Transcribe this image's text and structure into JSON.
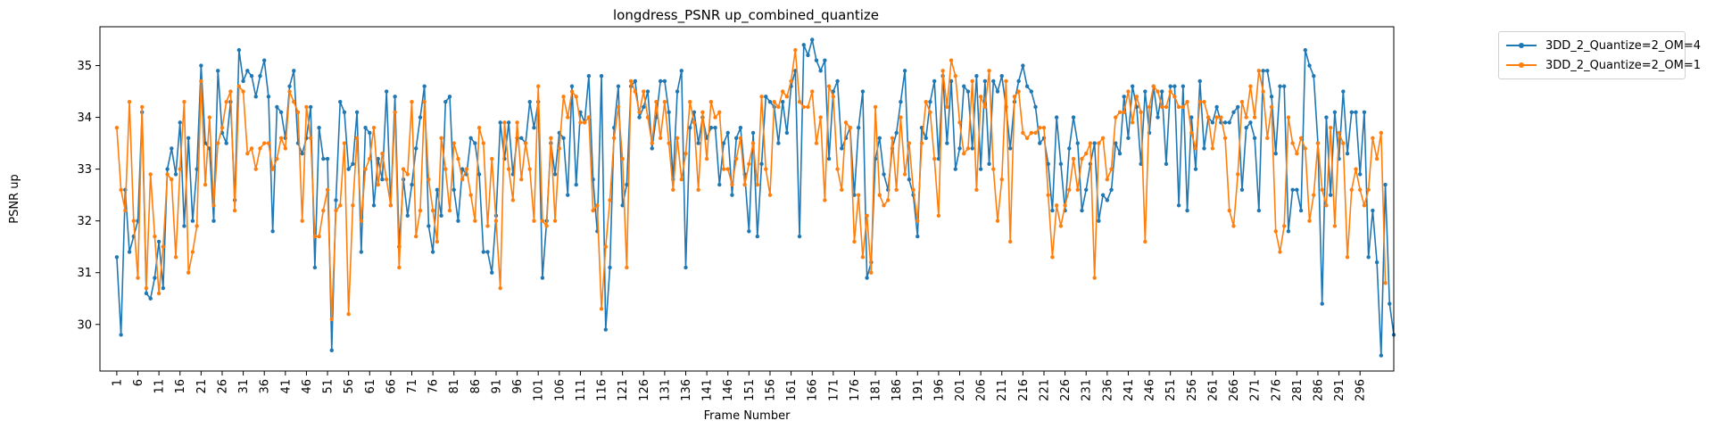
{
  "chart_data": {
    "type": "line",
    "title": "longdress_PSNR up_combined_quantize",
    "xlabel": "Frame Number",
    "ylabel": "PSNR up",
    "xlim": [
      -3,
      304
    ],
    "ylim": [
      29.1,
      35.75
    ],
    "yticks": [
      30,
      31,
      32,
      33,
      34,
      35
    ],
    "x_start": 1,
    "x_tick_labels": [
      "1",
      "6",
      "11",
      "16",
      "21",
      "26",
      "31",
      "36",
      "41",
      "46",
      "51",
      "56",
      "61",
      "66",
      "71",
      "76",
      "81",
      "86",
      "91",
      "96",
      "101",
      "106",
      "111",
      "116",
      "121",
      "126",
      "131",
      "136",
      "141",
      "146",
      "151",
      "156",
      "161",
      "166",
      "171",
      "176",
      "181",
      "186",
      "191",
      "196",
      "201",
      "206",
      "211",
      "216",
      "221",
      "226",
      "231",
      "236",
      "241",
      "246",
      "251",
      "256",
      "261",
      "266",
      "271",
      "276",
      "281",
      "286",
      "291",
      "296"
    ],
    "grid": false,
    "legend_position": "outside-top-right",
    "series": [
      {
        "name": "3DD_2_Quantize=2_OM=4",
        "color": "#1f77b4",
        "values": [
          31.3,
          29.8,
          32.6,
          31.4,
          31.7,
          32.0,
          34.1,
          30.6,
          30.5,
          30.9,
          31.6,
          30.7,
          33.0,
          33.4,
          32.9,
          33.9,
          31.9,
          33.6,
          32.0,
          33.0,
          35.0,
          33.5,
          33.4,
          32.0,
          34.9,
          33.7,
          33.5,
          34.3,
          32.4,
          35.3,
          34.7,
          34.9,
          34.8,
          34.4,
          34.8,
          35.1,
          34.4,
          31.8,
          34.2,
          34.1,
          33.6,
          34.6,
          34.9,
          33.5,
          33.3,
          33.6,
          34.2,
          31.1,
          33.8,
          33.2,
          33.2,
          29.5,
          32.4,
          34.3,
          34.1,
          33.0,
          33.1,
          34.1,
          31.4,
          33.8,
          33.7,
          32.3,
          33.2,
          32.8,
          34.5,
          32.3,
          34.4,
          31.5,
          32.8,
          32.1,
          32.7,
          33.4,
          34.0,
          34.6,
          31.9,
          31.4,
          32.6,
          32.1,
          34.3,
          34.4,
          32.6,
          32.0,
          33.0,
          32.9,
          33.6,
          33.5,
          32.9,
          31.4,
          31.4,
          31.0,
          32.1,
          33.9,
          33.2,
          33.9,
          32.9,
          33.6,
          33.6,
          33.5,
          34.3,
          33.8,
          34.3,
          30.9,
          32.0,
          33.5,
          32.9,
          33.7,
          33.6,
          32.5,
          34.6,
          32.7,
          34.1,
          33.9,
          34.8,
          32.8,
          31.8,
          34.8,
          29.9,
          31.1,
          33.8,
          34.6,
          32.3,
          32.7,
          34.6,
          34.7,
          34.0,
          34.2,
          34.5,
          33.4,
          34.0,
          34.7,
          34.7,
          34.1,
          32.8,
          34.5,
          34.9,
          31.1,
          33.8,
          34.1,
          33.5,
          34.0,
          33.6,
          33.8,
          33.8,
          32.7,
          33.5,
          33.7,
          32.5,
          33.6,
          33.8,
          32.9,
          31.8,
          33.7,
          31.7,
          33.1,
          34.4,
          34.3,
          34.2,
          33.5,
          34.3,
          33.7,
          34.6,
          34.9,
          31.7,
          35.4,
          35.2,
          35.5,
          35.1,
          34.9,
          35.1,
          33.2,
          34.5,
          34.7,
          33.4,
          33.6,
          33.8,
          32.5,
          33.8,
          34.5,
          30.9,
          31.2,
          33.2,
          33.6,
          32.9,
          32.6,
          33.4,
          33.7,
          34.3,
          34.9,
          32.8,
          32.5,
          31.7,
          33.8,
          33.6,
          34.3,
          34.7,
          33.2,
          34.8,
          33.5,
          34.7,
          33.0,
          33.4,
          34.6,
          34.5,
          33.4,
          34.8,
          33.0,
          34.7,
          33.1,
          34.7,
          34.5,
          34.8,
          34.2,
          33.4,
          34.3,
          34.7,
          35.0,
          34.6,
          34.5,
          34.2,
          33.5,
          33.6,
          33.1,
          32.2,
          34.0,
          33.1,
          32.2,
          33.4,
          34.0,
          33.5,
          32.2,
          32.6,
          33.1,
          33.5,
          32.0,
          32.5,
          32.4,
          32.6,
          33.5,
          33.3,
          34.4,
          33.6,
          34.6,
          34.2,
          33.1,
          34.5,
          33.7,
          34.6,
          34.0,
          34.5,
          33.1,
          34.6,
          34.6,
          32.3,
          34.6,
          32.2,
          34.0,
          33.0,
          34.7,
          33.4,
          34.0,
          33.9,
          34.2,
          33.9,
          33.9,
          33.9,
          34.1,
          34.2,
          32.6,
          33.8,
          33.9,
          33.6,
          32.2,
          34.9,
          34.9,
          34.4,
          33.3,
          34.6,
          34.6,
          31.8,
          32.6,
          32.6,
          32.2,
          35.3,
          35.0,
          34.8,
          33.5,
          30.4,
          34.0,
          32.5,
          34.1,
          33.2,
          34.5,
          33.3,
          34.1,
          34.1,
          32.9,
          34.1,
          31.3,
          32.2,
          31.2,
          29.4,
          32.7,
          30.4,
          29.8
        ]
      },
      {
        "name": "3DD_2_Quantize=2_OM=1",
        "color": "#ff7f0e",
        "values": [
          33.8,
          32.6,
          32.2,
          34.3,
          32.0,
          30.9,
          34.2,
          30.7,
          32.9,
          31.7,
          30.6,
          31.5,
          32.9,
          32.8,
          31.3,
          33.0,
          34.3,
          31.0,
          31.4,
          31.9,
          34.7,
          32.7,
          34.0,
          32.3,
          33.5,
          33.8,
          34.3,
          34.5,
          32.2,
          34.6,
          34.5,
          33.3,
          33.4,
          33.0,
          33.4,
          33.5,
          33.5,
          33.0,
          33.2,
          33.6,
          33.4,
          34.5,
          34.3,
          34.1,
          32.0,
          34.2,
          33.6,
          31.7,
          31.7,
          32.2,
          32.6,
          30.1,
          32.2,
          32.3,
          33.5,
          30.2,
          32.3,
          33.6,
          32.0,
          33.0,
          33.2,
          33.8,
          32.7,
          33.3,
          32.8,
          32.3,
          34.1,
          31.1,
          33.0,
          32.9,
          34.3,
          31.7,
          32.2,
          34.3,
          32.8,
          32.2,
          31.6,
          33.6,
          33.0,
          32.2,
          33.5,
          33.2,
          32.8,
          33.0,
          32.5,
          32.0,
          33.8,
          33.5,
          31.9,
          33.2,
          32.0,
          30.7,
          33.9,
          33.0,
          32.4,
          33.9,
          32.8,
          33.5,
          33.0,
          32.0,
          34.6,
          32.0,
          31.9,
          33.6,
          32.0,
          33.4,
          34.4,
          34.0,
          34.5,
          34.4,
          33.9,
          33.9,
          34.0,
          32.2,
          32.3,
          30.3,
          31.5,
          32.4,
          33.6,
          34.2,
          33.2,
          31.1,
          34.7,
          34.5,
          34.1,
          34.5,
          34.0,
          33.5,
          34.3,
          33.6,
          34.3,
          33.5,
          32.6,
          33.6,
          32.8,
          33.3,
          34.3,
          33.9,
          32.6,
          34.1,
          33.2,
          34.3,
          34.0,
          34.1,
          33.0,
          33.0,
          32.7,
          33.2,
          33.6,
          32.7,
          33.1,
          33.5,
          32.7,
          34.4,
          33.0,
          32.5,
          34.3,
          34.2,
          34.5,
          34.4,
          34.7,
          35.3,
          34.3,
          34.2,
          34.2,
          34.5,
          33.5,
          34.0,
          32.4,
          34.6,
          34.4,
          33.0,
          32.6,
          33.9,
          33.8,
          31.6,
          32.5,
          31.3,
          32.1,
          31.0,
          34.2,
          32.5,
          32.3,
          32.4,
          33.6,
          32.6,
          34.0,
          32.9,
          33.5,
          32.6,
          32.0,
          33.5,
          34.3,
          34.1,
          33.2,
          32.1,
          34.9,
          34.2,
          35.1,
          34.8,
          33.9,
          33.3,
          33.4,
          34.7,
          32.6,
          34.4,
          34.2,
          34.9,
          33.0,
          32.0,
          32.8,
          34.7,
          31.6,
          34.4,
          34.5,
          33.7,
          33.6,
          33.7,
          33.7,
          33.8,
          33.8,
          32.5,
          31.3,
          32.3,
          31.9,
          32.3,
          32.6,
          33.2,
          32.6,
          33.2,
          33.3,
          33.5,
          30.9,
          33.5,
          33.6,
          32.8,
          33.0,
          34.0,
          34.1,
          34.1,
          34.5,
          33.9,
          34.4,
          34.1,
          31.6,
          34.2,
          34.6,
          34.5,
          34.2,
          34.2,
          34.5,
          34.4,
          34.2,
          34.2,
          34.3,
          33.7,
          33.4,
          34.3,
          34.3,
          34.0,
          33.4,
          34.0,
          34.0,
          33.6,
          32.2,
          31.9,
          32.9,
          34.3,
          34.0,
          34.6,
          34.0,
          34.9,
          34.5,
          33.6,
          34.2,
          31.8,
          31.4,
          31.9,
          34.0,
          33.5,
          33.3,
          33.6,
          33.4,
          32.0,
          32.5,
          33.5,
          32.6,
          32.3,
          33.8,
          31.9,
          33.7,
          33.5,
          31.3,
          32.6,
          33.0,
          32.6,
          32.3,
          32.6,
          33.6,
          33.2,
          33.7,
          30.8
        ]
      }
    ]
  }
}
